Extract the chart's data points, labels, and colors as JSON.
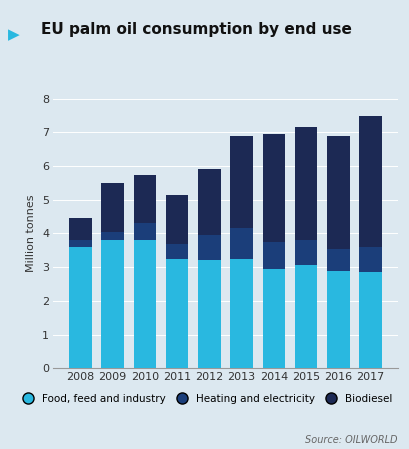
{
  "title": "EU palm oil consumption by end use",
  "ylabel": "Million tonnes",
  "source": "Source: OILWORLD",
  "background_color": "#dce8f0",
  "years": [
    2008,
    2009,
    2010,
    2011,
    2012,
    2013,
    2014,
    2015,
    2016,
    2017
  ],
  "food_feed_industry": [
    3.6,
    3.8,
    3.8,
    3.25,
    3.2,
    3.25,
    2.95,
    3.05,
    2.9,
    2.85
  ],
  "heating_electricity": [
    0.2,
    0.25,
    0.5,
    0.45,
    0.75,
    0.9,
    0.8,
    0.75,
    0.65,
    0.75
  ],
  "biodiesel": [
    0.65,
    1.45,
    1.45,
    1.45,
    1.95,
    2.75,
    3.2,
    3.35,
    3.35,
    3.9
  ],
  "color_food": "#29b8e0",
  "color_heating": "#1b3e7a",
  "color_biodiesel": "#1c2954",
  "ylim": [
    0,
    8
  ],
  "yticks": [
    0,
    1,
    2,
    3,
    4,
    5,
    6,
    7,
    8
  ],
  "legend_labels": [
    "Food, feed and industry",
    "Heating and electricity",
    "Biodiesel"
  ],
  "title_marker_color": "#29b8e0",
  "bar_width": 0.7
}
